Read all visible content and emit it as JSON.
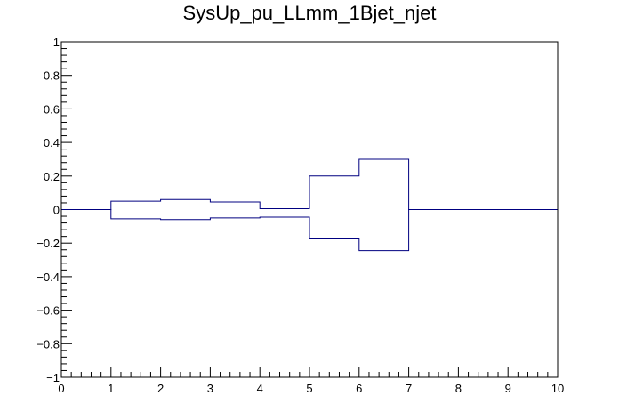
{
  "chart_data": {
    "type": "line",
    "title": "SysUp_pu_LLmm_1Bjet_njet",
    "xlabel": "",
    "ylabel": "",
    "xlim": [
      0,
      10
    ],
    "ylim": [
      -1,
      1
    ],
    "x_ticks": [
      "0",
      "1",
      "2",
      "3",
      "4",
      "5",
      "6",
      "7",
      "8",
      "9",
      "10"
    ],
    "y_ticks": [
      "−1",
      "−0.8",
      "−0.6",
      "−0.4",
      "−0.2",
      "0",
      "0.2",
      "0.4",
      "0.6",
      "0.8",
      "1"
    ],
    "bin_edges": [
      0,
      1,
      2,
      3,
      4,
      5,
      6,
      7,
      8,
      9,
      10
    ],
    "series": [
      {
        "color": "#000080",
        "style": "step",
        "values": [
          0,
          0.05,
          0.06,
          0.045,
          0.005,
          0.2,
          0.3,
          0,
          0,
          0
        ]
      },
      {
        "color": "#000080",
        "style": "step",
        "values": [
          0,
          -0.055,
          -0.06,
          -0.05,
          -0.045,
          -0.175,
          -0.245,
          0,
          0,
          0
        ]
      }
    ],
    "grid": false,
    "legend": "none"
  }
}
